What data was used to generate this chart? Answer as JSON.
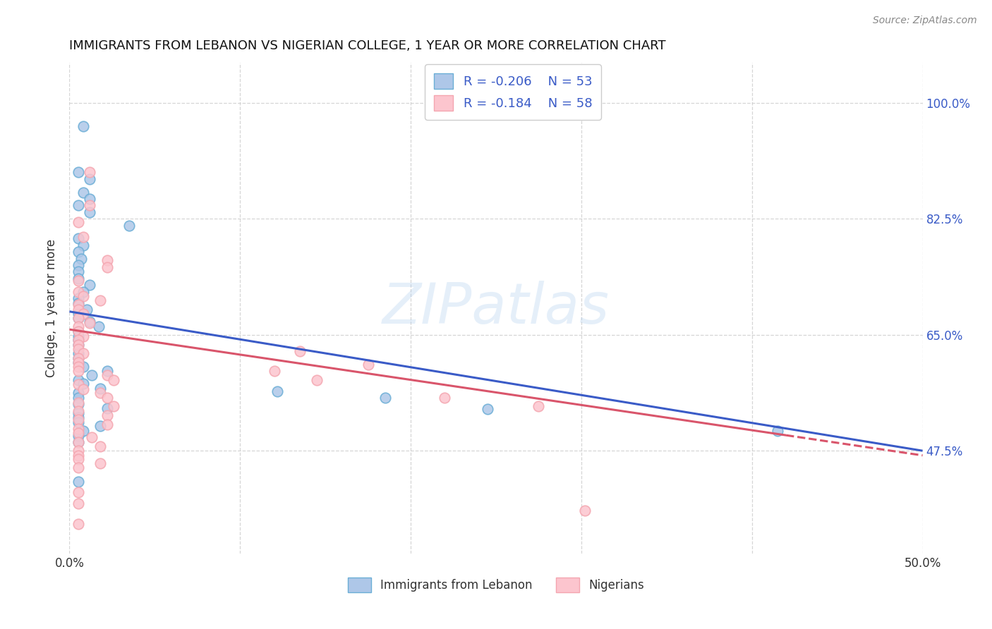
{
  "title": "IMMIGRANTS FROM LEBANON VS NIGERIAN COLLEGE, 1 YEAR OR MORE CORRELATION CHART",
  "source": "Source: ZipAtlas.com",
  "ylabel": "College, 1 year or more",
  "xlim": [
    0.0,
    0.5
  ],
  "ylim": [
    0.32,
    1.06
  ],
  "ytick_positions": [
    0.475,
    0.65,
    0.825,
    1.0
  ],
  "ytick_labels": [
    "47.5%",
    "65.0%",
    "82.5%",
    "100.0%"
  ],
  "xtick_positions": [
    0.0,
    0.1,
    0.2,
    0.3,
    0.4,
    0.5
  ],
  "xtick_labels_show": [
    "0.0%",
    "",
    "",
    "",
    "",
    "50.0%"
  ],
  "legend_r_blue": "-0.206",
  "legend_n_blue": "53",
  "legend_r_pink": "-0.184",
  "legend_n_pink": "58",
  "legend_label_blue": "Immigrants from Lebanon",
  "legend_label_pink": "Nigerians",
  "watermark": "ZIPatlas",
  "blue_scatter": [
    [
      0.008,
      0.965
    ],
    [
      0.005,
      0.895
    ],
    [
      0.012,
      0.885
    ],
    [
      0.008,
      0.865
    ],
    [
      0.012,
      0.855
    ],
    [
      0.005,
      0.845
    ],
    [
      0.012,
      0.835
    ],
    [
      0.035,
      0.815
    ],
    [
      0.005,
      0.795
    ],
    [
      0.008,
      0.785
    ],
    [
      0.005,
      0.775
    ],
    [
      0.007,
      0.765
    ],
    [
      0.005,
      0.755
    ],
    [
      0.005,
      0.745
    ],
    [
      0.005,
      0.735
    ],
    [
      0.012,
      0.725
    ],
    [
      0.008,
      0.715
    ],
    [
      0.005,
      0.705
    ],
    [
      0.005,
      0.698
    ],
    [
      0.01,
      0.688
    ],
    [
      0.005,
      0.682
    ],
    [
      0.005,
      0.675
    ],
    [
      0.012,
      0.67
    ],
    [
      0.017,
      0.662
    ],
    [
      0.005,
      0.655
    ],
    [
      0.005,
      0.648
    ],
    [
      0.005,
      0.642
    ],
    [
      0.005,
      0.635
    ],
    [
      0.005,
      0.622
    ],
    [
      0.005,
      0.615
    ],
    [
      0.005,
      0.608
    ],
    [
      0.008,
      0.602
    ],
    [
      0.022,
      0.595
    ],
    [
      0.013,
      0.589
    ],
    [
      0.005,
      0.582
    ],
    [
      0.008,
      0.576
    ],
    [
      0.018,
      0.569
    ],
    [
      0.005,
      0.562
    ],
    [
      0.005,
      0.555
    ],
    [
      0.005,
      0.545
    ],
    [
      0.022,
      0.539
    ],
    [
      0.005,
      0.532
    ],
    [
      0.005,
      0.525
    ],
    [
      0.005,
      0.518
    ],
    [
      0.018,
      0.512
    ],
    [
      0.008,
      0.505
    ],
    [
      0.005,
      0.498
    ],
    [
      0.005,
      0.488
    ],
    [
      0.122,
      0.565
    ],
    [
      0.185,
      0.555
    ],
    [
      0.245,
      0.538
    ],
    [
      0.415,
      0.505
    ],
    [
      0.005,
      0.428
    ]
  ],
  "pink_scatter": [
    [
      0.012,
      0.895
    ],
    [
      0.012,
      0.845
    ],
    [
      0.005,
      0.82
    ],
    [
      0.008,
      0.798
    ],
    [
      0.022,
      0.762
    ],
    [
      0.022,
      0.752
    ],
    [
      0.005,
      0.732
    ],
    [
      0.005,
      0.715
    ],
    [
      0.008,
      0.708
    ],
    [
      0.018,
      0.702
    ],
    [
      0.005,
      0.695
    ],
    [
      0.005,
      0.688
    ],
    [
      0.008,
      0.682
    ],
    [
      0.005,
      0.675
    ],
    [
      0.012,
      0.668
    ],
    [
      0.005,
      0.662
    ],
    [
      0.005,
      0.655
    ],
    [
      0.008,
      0.648
    ],
    [
      0.005,
      0.642
    ],
    [
      0.005,
      0.635
    ],
    [
      0.005,
      0.628
    ],
    [
      0.008,
      0.622
    ],
    [
      0.005,
      0.615
    ],
    [
      0.005,
      0.608
    ],
    [
      0.005,
      0.602
    ],
    [
      0.005,
      0.595
    ],
    [
      0.022,
      0.589
    ],
    [
      0.026,
      0.582
    ],
    [
      0.005,
      0.575
    ],
    [
      0.008,
      0.568
    ],
    [
      0.018,
      0.562
    ],
    [
      0.022,
      0.555
    ],
    [
      0.005,
      0.548
    ],
    [
      0.026,
      0.542
    ],
    [
      0.005,
      0.535
    ],
    [
      0.022,
      0.528
    ],
    [
      0.005,
      0.522
    ],
    [
      0.022,
      0.515
    ],
    [
      0.005,
      0.508
    ],
    [
      0.005,
      0.502
    ],
    [
      0.013,
      0.495
    ],
    [
      0.005,
      0.488
    ],
    [
      0.018,
      0.482
    ],
    [
      0.005,
      0.475
    ],
    [
      0.005,
      0.468
    ],
    [
      0.005,
      0.462
    ],
    [
      0.018,
      0.456
    ],
    [
      0.005,
      0.45
    ],
    [
      0.12,
      0.595
    ],
    [
      0.145,
      0.582
    ],
    [
      0.22,
      0.555
    ],
    [
      0.275,
      0.542
    ],
    [
      0.135,
      0.625
    ],
    [
      0.175,
      0.605
    ],
    [
      0.005,
      0.412
    ],
    [
      0.005,
      0.395
    ],
    [
      0.302,
      0.385
    ],
    [
      0.005,
      0.365
    ]
  ],
  "blue_line_x": [
    0.0,
    0.5
  ],
  "blue_line_y": [
    0.685,
    0.475
  ],
  "pink_line_x": [
    0.0,
    0.5
  ],
  "pink_line_y": [
    0.658,
    0.468
  ],
  "blue_dot_color": "#aec7e8",
  "blue_edge_color": "#6baed6",
  "pink_dot_color": "#fcc5ce",
  "pink_edge_color": "#f4a6b0",
  "line_blue_color": "#3a5bc7",
  "line_pink_color": "#d9556b",
  "grid_color": "#cccccc",
  "right_label_color": "#3a5bc7",
  "background": "#ffffff"
}
